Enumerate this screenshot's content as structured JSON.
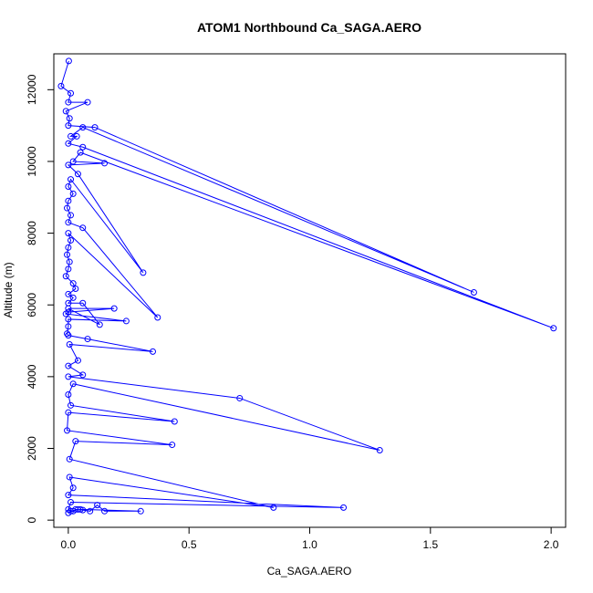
{
  "chart_data": {
    "type": "line",
    "title": "ATOM1 Northbound Ca_SAGA.AERO",
    "xlabel": "Ca_SAGA.AERO",
    "ylabel": "Altitude (m)",
    "xlim": [
      -0.06,
      2.06
    ],
    "ylim": [
      -200,
      13000
    ],
    "xticks": [
      0.0,
      0.5,
      1.0,
      1.5,
      2.0
    ],
    "xtick_labels": [
      "0.0",
      "0.5",
      "1.0",
      "1.5",
      "2.0"
    ],
    "yticks": [
      0,
      2000,
      4000,
      6000,
      8000,
      10000,
      12000
    ],
    "ytick_labels": [
      "0",
      "2000",
      "4000",
      "6000",
      "8000",
      "10000",
      "12000"
    ],
    "grid": false,
    "legend": "none",
    "series": [
      {
        "color": "#0000ff",
        "marker": "open-circle",
        "points": [
          [
            0.002,
            12800
          ],
          [
            -0.03,
            12100
          ],
          [
            0.01,
            11900
          ],
          [
            0.0,
            11650
          ],
          [
            0.08,
            11650
          ],
          [
            -0.01,
            11400
          ],
          [
            0.005,
            11200
          ],
          [
            0.0,
            11000
          ],
          [
            0.11,
            10950
          ],
          [
            1.68,
            6350
          ],
          [
            0.06,
            10950
          ],
          [
            0.01,
            10700
          ],
          [
            0.035,
            10700
          ],
          [
            0.0,
            10500
          ],
          [
            0.06,
            10400
          ],
          [
            2.01,
            5350
          ],
          [
            0.05,
            10250
          ],
          [
            0.02,
            10000
          ],
          [
            0.15,
            9950
          ],
          [
            0.0,
            9900
          ],
          [
            0.04,
            9650
          ],
          [
            0.31,
            6900
          ],
          [
            0.01,
            9500
          ],
          [
            0.0,
            9300
          ],
          [
            0.02,
            9100
          ],
          [
            0.0,
            8900
          ],
          [
            -0.005,
            8700
          ],
          [
            0.01,
            8500
          ],
          [
            0.0,
            8300
          ],
          [
            0.06,
            8150
          ],
          [
            0.37,
            5650
          ],
          [
            0.0,
            8000
          ],
          [
            0.01,
            7800
          ],
          [
            0.0,
            7600
          ],
          [
            -0.005,
            7400
          ],
          [
            0.005,
            7200
          ],
          [
            0.0,
            7000
          ],
          [
            -0.01,
            6800
          ],
          [
            0.02,
            6600
          ],
          [
            0.03,
            6450
          ],
          [
            0.0,
            6300
          ],
          [
            0.02,
            6200
          ],
          [
            0.0,
            6050
          ],
          [
            0.06,
            6050
          ],
          [
            0.13,
            5450
          ],
          [
            0.0,
            5900
          ],
          [
            0.19,
            5900
          ],
          [
            0.0,
            5800
          ],
          [
            -0.01,
            5750
          ],
          [
            0.24,
            5550
          ],
          [
            0.0,
            5600
          ],
          [
            0.0,
            5400
          ],
          [
            -0.005,
            5200
          ],
          [
            0.0,
            5150
          ],
          [
            0.08,
            5050
          ],
          [
            0.35,
            4700
          ],
          [
            0.005,
            4900
          ],
          [
            0.04,
            4450
          ],
          [
            0.0,
            4300
          ],
          [
            0.06,
            4050
          ],
          [
            0.0,
            4000
          ],
          [
            0.71,
            3400
          ],
          [
            1.29,
            1950
          ],
          [
            0.02,
            3800
          ],
          [
            0.0,
            3500
          ],
          [
            0.01,
            3200
          ],
          [
            0.44,
            2750
          ],
          [
            0.0,
            3000
          ],
          [
            -0.005,
            2500
          ],
          [
            0.43,
            2100
          ],
          [
            0.03,
            2200
          ],
          [
            0.005,
            1700
          ],
          [
            0.85,
            350
          ],
          [
            0.005,
            1200
          ],
          [
            0.02,
            900
          ],
          [
            0.0,
            700
          ],
          [
            1.14,
            350
          ],
          [
            0.01,
            500
          ],
          [
            0.0,
            300
          ],
          [
            0.02,
            250
          ],
          [
            0.03,
            300
          ],
          [
            0.06,
            280
          ],
          [
            0.09,
            250
          ],
          [
            0.12,
            420
          ],
          [
            0.15,
            250
          ],
          [
            0.3,
            250
          ],
          [
            0.05,
            300
          ],
          [
            0.01,
            250
          ],
          [
            0.04,
            300
          ],
          [
            0.0,
            200
          ]
        ]
      }
    ]
  }
}
